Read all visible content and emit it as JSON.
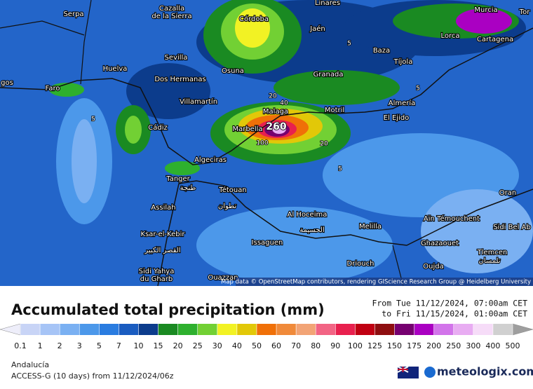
{
  "header": {
    "title": "Accumulated total precipitation (mm)",
    "from": "From Tue 11/12/2024, 07:00am CET",
    "to": "to Fri 11/15/2024, 01:00am CET"
  },
  "map": {
    "attribution": "Map data © OpenStreetMap contributors, rendering GIScience Research Group @ Heidelberg University",
    "places": [
      {
        "name": "Serpa"
      },
      {
        "name": "Cazalla"
      },
      {
        "name": "de la Sierra"
      },
      {
        "name": "Córdoba"
      },
      {
        "name": "Linares"
      },
      {
        "name": "Murcia"
      },
      {
        "name": "Tor"
      },
      {
        "name": "Jaén"
      },
      {
        "name": "Lorca"
      },
      {
        "name": "Cartagena"
      },
      {
        "name": "Sevilla"
      },
      {
        "name": "Baza"
      },
      {
        "name": "Huelva"
      },
      {
        "name": "Dos Hermanas"
      },
      {
        "name": "Osuna"
      },
      {
        "name": "Granada"
      },
      {
        "name": "Tíjola"
      },
      {
        "name": "Faro"
      },
      {
        "name": "gos"
      },
      {
        "name": "Villamartín"
      },
      {
        "name": "Malaga"
      },
      {
        "name": "Motril"
      },
      {
        "name": "Almería"
      },
      {
        "name": "El Ejido"
      },
      {
        "name": "Cádiz"
      },
      {
        "name": "Marbella"
      },
      {
        "name": "Algeciras"
      },
      {
        "name": "Tanger"
      },
      {
        "name": "طنجة"
      },
      {
        "name": "Tétouan"
      },
      {
        "name": "تطوان"
      },
      {
        "name": "Assilah"
      },
      {
        "name": "Al Hoceima"
      },
      {
        "name": "الحسيمة"
      },
      {
        "name": "Melilla"
      },
      {
        "name": "Aïn Témouchent"
      },
      {
        "name": "Sidi Bel Ab"
      },
      {
        "name": "Oran"
      },
      {
        "name": "Ksar-el-Kebir"
      },
      {
        "name": "القصر الكبير"
      },
      {
        "name": "Issaguen"
      },
      {
        "name": "Ghazaouet"
      },
      {
        "name": "Tlemcen"
      },
      {
        "name": "تلمسان"
      },
      {
        "name": "Driouch"
      },
      {
        "name": "Oujda"
      },
      {
        "name": "Sidi Yahya"
      },
      {
        "name": "du Gharb"
      },
      {
        "name": "Ouazzan"
      }
    ],
    "contour_labels": [
      "5",
      "5",
      "5",
      "5",
      "20",
      "20",
      "40",
      "260",
      "100"
    ]
  },
  "legend": {
    "ticks": [
      0.1,
      1,
      2,
      3,
      5,
      7,
      10,
      15,
      20,
      25,
      30,
      40,
      50,
      60,
      70,
      80,
      90,
      100,
      125,
      150,
      175,
      200,
      250,
      300,
      400,
      500
    ],
    "colors": [
      "#c8d4f6",
      "#a6c4f6",
      "#7ab0f2",
      "#4c98ea",
      "#2a7ce0",
      "#1a5cc0",
      "#0c3c8c",
      "#1a8a22",
      "#2eb02e",
      "#72d034",
      "#f2f224",
      "#e2c808",
      "#f07008",
      "#f08a3a",
      "#f2a476",
      "#f26484",
      "#e8204e",
      "#c00012",
      "#8e0e10",
      "#760070",
      "#aa00c2",
      "#d274ea",
      "#e8acf2",
      "#f6dcf8",
      "#d0d0d0"
    ],
    "under_color": "#eeeefa",
    "over_color": "#9e9e9e"
  },
  "footer": {
    "region": "Andalucía",
    "model": "ACCESS-G (10 days) from 11/12/2024/06z",
    "brand": "meteologix.com"
  }
}
